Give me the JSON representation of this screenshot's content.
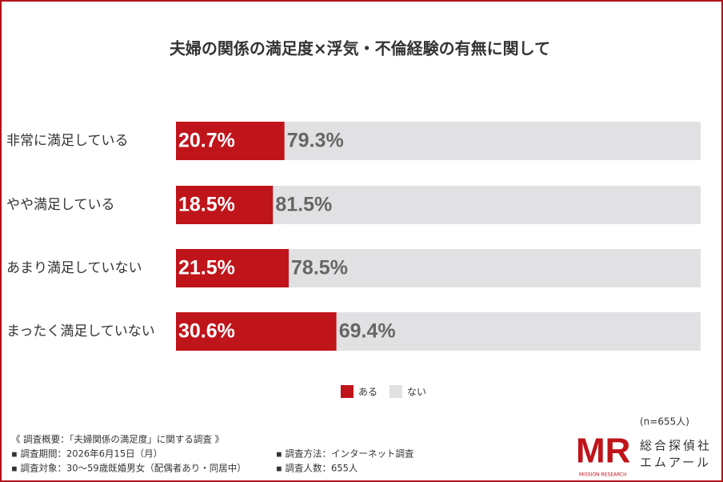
{
  "chart_data": {
    "type": "stacked-bar-100",
    "title": "夫婦の関係の満足度×浮気・不倫経験の有無に関して",
    "categories": [
      "非常に満足している",
      "やや満足している",
      "あまり満足していない",
      "まったく満足していない"
    ],
    "series": [
      {
        "name": "ある",
        "color": "#c0141b",
        "values": [
          20.7,
          18.5,
          21.5,
          30.6
        ],
        "value_labels": [
          "20.7%",
          "18.5%",
          "21.5%",
          "30.6%"
        ]
      },
      {
        "name": "ない",
        "color": "#e1e1e4",
        "values": [
          79.3,
          81.5,
          78.5,
          69.4
        ],
        "value_labels": [
          "79.3%",
          "81.5%",
          "78.5%",
          "69.4%"
        ]
      }
    ],
    "sample_size": "(n=655人)",
    "notes": {
      "heading": "《 調査概要：「夫婦関係の満足度」に関する調査 》",
      "left": [
        "▪ 調査期間：2026年6月15日（月）",
        "▪ 調査対象：30〜59歳既婚男女（配偶者あり・同居中）"
      ],
      "right": [
        "▪ 調査方法：インターネット調査",
        "▪ 調査人数：655人"
      ]
    }
  },
  "logo": {
    "mark": "MR",
    "sub": "MISSION RESEARCH",
    "line1": "総合探偵社",
    "line2": "エムアール"
  }
}
